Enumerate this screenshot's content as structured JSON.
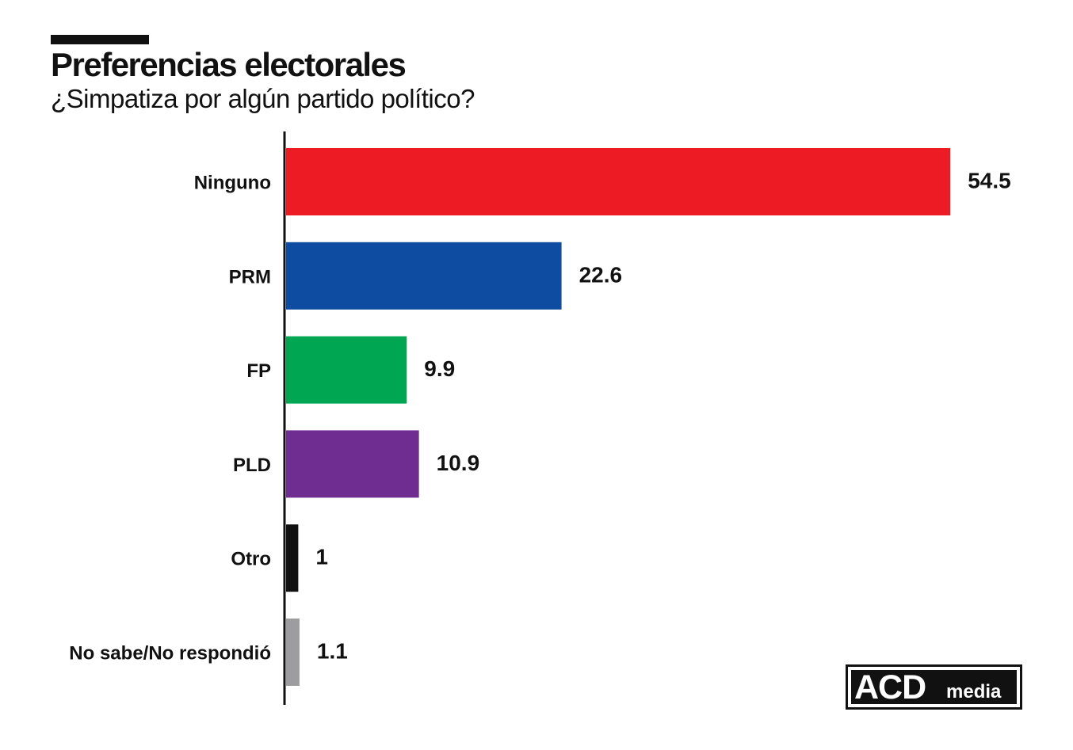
{
  "chart_data": {
    "type": "bar",
    "orientation": "horizontal",
    "title": "Preferencias electorales",
    "subtitle": "¿Simpatiza por algún partido político?",
    "categories": [
      "Ninguno",
      "PRM",
      "FP",
      "PLD",
      "Otro",
      "No sabe/No respondió"
    ],
    "values": [
      54.5,
      22.6,
      9.9,
      10.9,
      1,
      1.1
    ],
    "value_labels": [
      "54.5",
      "22.6",
      "9.9",
      "10.9",
      "1",
      "1.1"
    ],
    "colors": [
      "#ed1c24",
      "#0d4ca1",
      "#00a651",
      "#6f2c91",
      "#111111",
      "#9d9d9f"
    ],
    "xlim": [
      0,
      60
    ],
    "grid": false,
    "legend": "none"
  },
  "brand": {
    "logo_main": "ACD",
    "logo_sub": "media"
  }
}
